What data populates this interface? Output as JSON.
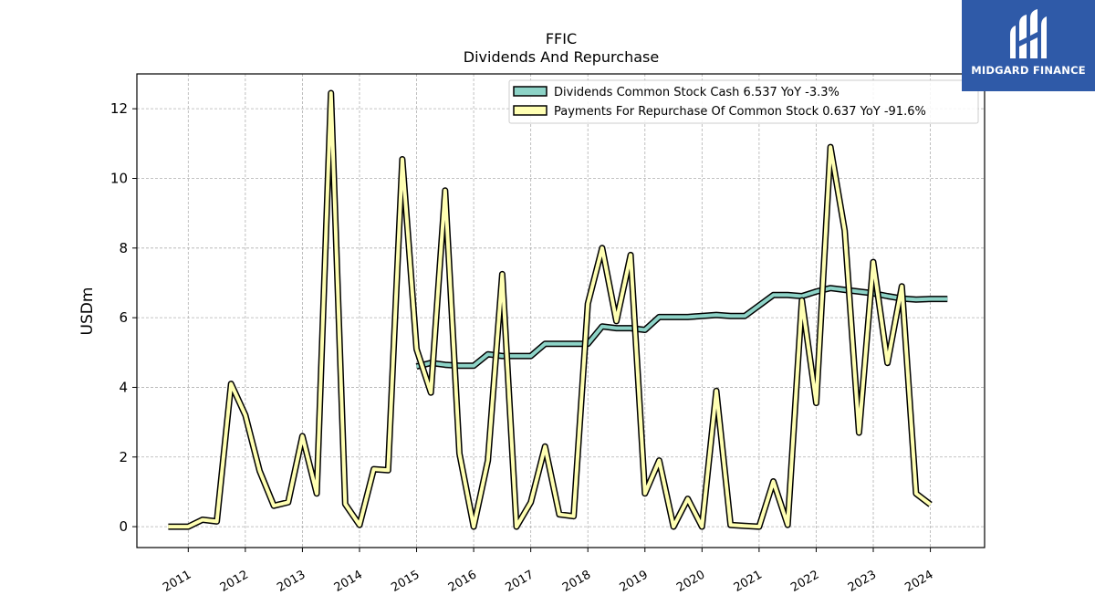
{
  "chart_data": {
    "type": "line",
    "title": "FFIC",
    "subtitle": "Dividends And Repurchase",
    "ylabel": "USDm",
    "xlabel": "",
    "xlim": [
      2010.1,
      2024.95
    ],
    "ylim": [
      -0.6,
      13.0
    ],
    "yticks": [
      0,
      2,
      4,
      6,
      8,
      10,
      12
    ],
    "xticks": [
      2011,
      2012,
      2013,
      2014,
      2015,
      2016,
      2017,
      2018,
      2019,
      2020,
      2021,
      2022,
      2023,
      2024
    ],
    "grid": true,
    "legend_position": "top-right",
    "series": [
      {
        "name": "Dividends Common Stock Cash",
        "legend_label": "Dividends Common Stock Cash  6.537 YoY -3.3%",
        "color": "#8dd3c7",
        "x": [
          2015.0,
          2015.25,
          2015.5,
          2015.75,
          2016.0,
          2016.25,
          2016.5,
          2016.75,
          2017.0,
          2017.25,
          2017.5,
          2017.75,
          2018.0,
          2018.25,
          2018.5,
          2018.75,
          2019.0,
          2019.25,
          2019.5,
          2019.75,
          2020.0,
          2020.25,
          2020.5,
          2020.75,
          2021.0,
          2021.25,
          2021.5,
          2021.75,
          2022.0,
          2022.25,
          2022.5,
          2022.75,
          2023.0,
          2023.25,
          2023.5,
          2023.75,
          2024.0,
          2024.3
        ],
        "values": [
          4.6,
          4.7,
          4.65,
          4.62,
          4.62,
          4.95,
          4.9,
          4.9,
          4.9,
          5.25,
          5.25,
          5.25,
          5.25,
          5.75,
          5.7,
          5.7,
          5.65,
          6.02,
          6.02,
          6.02,
          6.05,
          6.08,
          6.05,
          6.05,
          6.35,
          6.65,
          6.65,
          6.62,
          6.75,
          6.85,
          6.8,
          6.75,
          6.7,
          6.62,
          6.55,
          6.52,
          6.537,
          6.537
        ]
      },
      {
        "name": "Payments For Repurchase Of Common Stock",
        "legend_label": "Payments For Repurchase Of Common Stock  0.637 YoY -91.6%",
        "color": "#ffffb3",
        "x": [
          2010.65,
          2011.0,
          2011.25,
          2011.5,
          2011.75,
          2012.0,
          2012.25,
          2012.5,
          2012.75,
          2013.0,
          2013.25,
          2013.5,
          2013.75,
          2014.0,
          2014.25,
          2014.5,
          2014.75,
          2015.0,
          2015.25,
          2015.5,
          2015.75,
          2016.0,
          2016.25,
          2016.5,
          2016.75,
          2017.0,
          2017.25,
          2017.5,
          2017.75,
          2018.0,
          2018.25,
          2018.5,
          2018.75,
          2019.0,
          2019.25,
          2019.5,
          2019.75,
          2020.0,
          2020.25,
          2020.5,
          2020.75,
          2021.0,
          2021.25,
          2021.5,
          2021.75,
          2022.0,
          2022.25,
          2022.5,
          2022.75,
          2023.0,
          2023.25,
          2023.5,
          2023.75,
          2024.0
        ],
        "values": [
          0.0,
          0.0,
          0.2,
          0.15,
          4.1,
          3.2,
          1.6,
          0.6,
          0.7,
          2.6,
          0.95,
          12.45,
          0.65,
          0.05,
          1.65,
          1.62,
          10.55,
          5.1,
          3.85,
          9.65,
          2.1,
          0.0,
          1.9,
          7.25,
          0.0,
          0.7,
          2.3,
          0.35,
          0.3,
          6.4,
          8.0,
          5.9,
          7.8,
          0.95,
          1.9,
          0.0,
          0.8,
          0.0,
          3.9,
          0.05,
          0.02,
          0.0,
          1.3,
          0.05,
          6.5,
          3.55,
          10.9,
          8.5,
          2.7,
          7.6,
          4.7,
          6.9,
          0.95,
          0.637
        ]
      }
    ]
  },
  "logo": {
    "text": "MIDGARD FINANCE",
    "color": "#2f5aa8"
  }
}
